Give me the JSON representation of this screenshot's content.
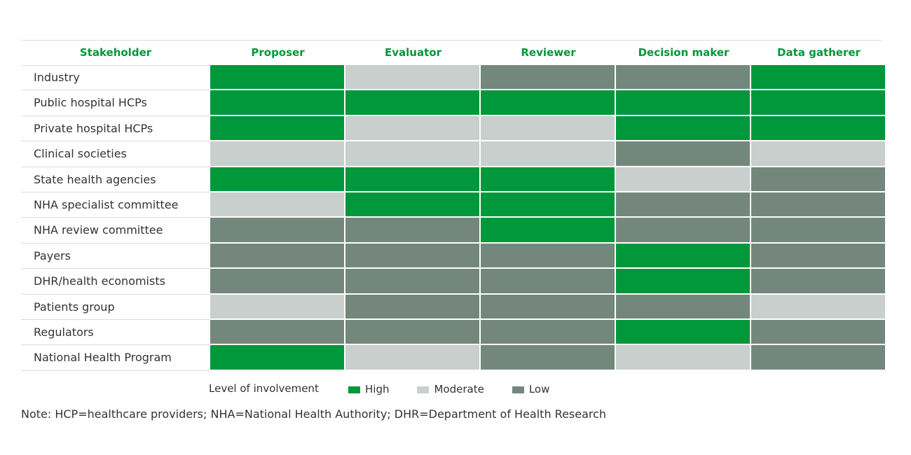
{
  "table": {
    "headers": [
      "Stakeholder",
      "Proposer",
      "Evaluator",
      "Reviewer",
      "Decision maker",
      "Data gatherer"
    ],
    "rows": [
      {
        "label": "Industry",
        "levels": [
          "High",
          "Moderate",
          "Low",
          "Low",
          "High"
        ]
      },
      {
        "label": "Public hospital HCPs",
        "levels": [
          "High",
          "High",
          "High",
          "High",
          "High"
        ]
      },
      {
        "label": "Private hospital HCPs",
        "levels": [
          "High",
          "Moderate",
          "Moderate",
          "High",
          "High"
        ]
      },
      {
        "label": "Clinical societies",
        "levels": [
          "Moderate",
          "Moderate",
          "Moderate",
          "Low",
          "Moderate"
        ]
      },
      {
        "label": "State health agencies",
        "levels": [
          "High",
          "High",
          "High",
          "Moderate",
          "Low"
        ]
      },
      {
        "label": "NHA specialist committee",
        "levels": [
          "Moderate",
          "High",
          "High",
          "Low",
          "Low"
        ]
      },
      {
        "label": "NHA review committee",
        "levels": [
          "Low",
          "Low",
          "High",
          "Low",
          "Low"
        ]
      },
      {
        "label": "Payers",
        "levels": [
          "Low",
          "Low",
          "Low",
          "High",
          "Low"
        ]
      },
      {
        "label": "DHR/health economists",
        "levels": [
          "Low",
          "Low",
          "Low",
          "High",
          "Low"
        ]
      },
      {
        "label": "Patients group",
        "levels": [
          "Moderate",
          "Low",
          "Low",
          "Low",
          "Moderate"
        ]
      },
      {
        "label": "Regulators",
        "levels": [
          "Low",
          "Low",
          "Low",
          "High",
          "Low"
        ]
      },
      {
        "label": "National Health Program",
        "levels": [
          "High",
          "Moderate",
          "Low",
          "Moderate",
          "Low"
        ]
      }
    ],
    "header_color": "#00983a"
  },
  "legend": {
    "title": "Level of involvement",
    "items": [
      {
        "label": "High",
        "color": "#00983a"
      },
      {
        "label": "Moderate",
        "color": "#c8cfcd"
      },
      {
        "label": "Low",
        "color": "#73877d"
      }
    ]
  },
  "note": "Note: HCP=healthcare providers; NHA=National Health Authority; DHR=Department of Health Research"
}
